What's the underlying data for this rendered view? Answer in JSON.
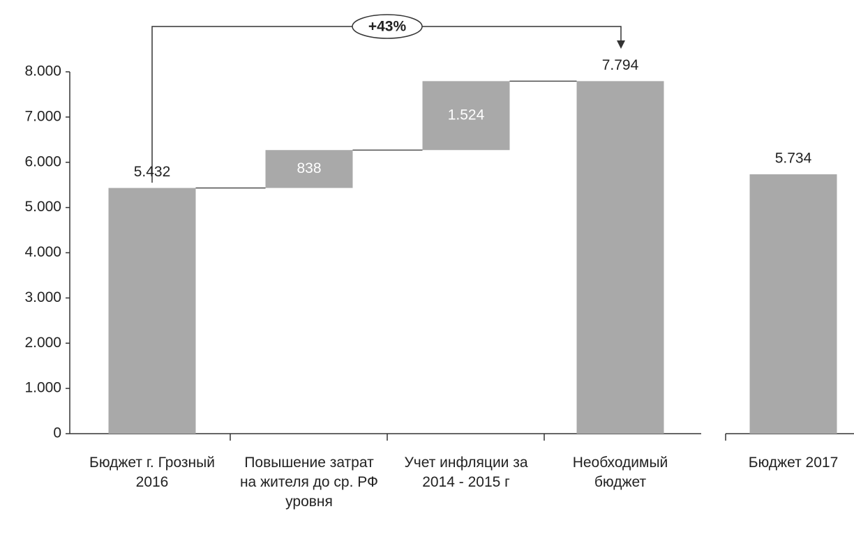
{
  "chart_data": {
    "type": "waterfall",
    "categories": [
      "Бюджет г. Грозный 2016",
      "Повышение затрат на жителя до ср. РФ уровня",
      "Учет инфляции за 2014 - 2015 г",
      "Необходимый бюджет",
      "Бюджет 2017"
    ],
    "measures": [
      "total",
      "increase",
      "increase",
      "total",
      "total"
    ],
    "values": [
      5432,
      838,
      1524,
      7794,
      5734
    ],
    "value_labels": [
      "5.432",
      "838",
      "1.524",
      "7.794",
      "5.734"
    ],
    "color": "#a9a9a9",
    "ylim": [
      0,
      8000
    ],
    "yticks": [
      0,
      {
        "value": 1000,
        "label": "1.000"
      },
      {
        "value": 2000,
        "label": "2.000"
      },
      {
        "value": 3000,
        "label": "3.000"
      },
      {
        "value": 4000,
        "label": "4.000"
      },
      {
        "value": 5000,
        "label": "5.000"
      },
      {
        "value": 6000,
        "label": "6.000"
      },
      {
        "value": 7000,
        "label": "7.000"
      },
      {
        "value": 8000,
        "label": "8.000"
      }
    ],
    "annotation": "+43%"
  }
}
